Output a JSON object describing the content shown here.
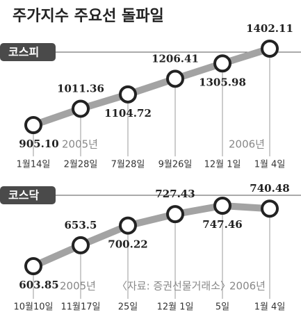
{
  "title": "주가지수 주요선 돌파일",
  "chart_data": [
    {
      "type": "line",
      "title": "코스피",
      "color": "#a3a3a3",
      "categories": [
        "1월14일",
        "2월28일",
        "7월28일",
        "9월26일",
        "12월 1일",
        "1월 4일"
      ],
      "values": [
        905.1,
        1011.36,
        1104.72,
        1206.41,
        1305.98,
        1402.11
      ],
      "value_labels": [
        "905.10",
        "1011.36",
        "1104.72",
        "1206.41",
        "1305.98",
        "1402.11"
      ],
      "annotations": [
        "2005년",
        "2006년"
      ]
    },
    {
      "type": "line",
      "title": "코스닥",
      "color": "#a3a3a3",
      "categories": [
        "10월10일",
        "11월17일",
        "25일",
        "12월 1일",
        "5일",
        "1월 4일"
      ],
      "values": [
        603.85,
        653.5,
        700.22,
        727.43,
        747.46,
        740.48
      ],
      "value_labels": [
        "603.85",
        "653.5",
        "700.22",
        "727.43",
        "747.46",
        "740.48"
      ],
      "annotations": [
        "2005년",
        "〈자료: 증권선물거래소〉",
        "2006년"
      ]
    }
  ]
}
